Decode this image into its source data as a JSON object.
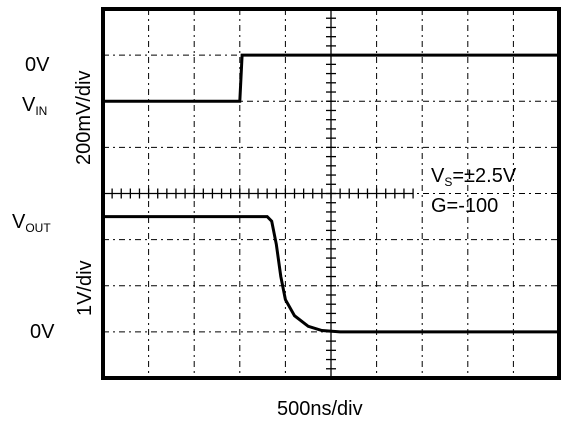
{
  "chart_data": {
    "type": "line",
    "x_axis_label": "500ns/div",
    "upper_trace": {
      "name_main": "V",
      "name_sub": "IN",
      "scale_label": "200mV/div",
      "zero_label": "0V",
      "zero_division": 1,
      "points": [
        [
          0,
          -1
        ],
        [
          3,
          -1
        ],
        [
          3.05,
          0
        ],
        [
          10,
          0
        ]
      ]
    },
    "lower_trace": {
      "name_main": "V",
      "name_sub": "OUT",
      "scale_label": "1V/div",
      "zero_label": "0V",
      "zero_division": 7,
      "points": [
        [
          0,
          2.5
        ],
        [
          3.6,
          2.5
        ],
        [
          3.7,
          2.4
        ],
        [
          3.8,
          1.9
        ],
        [
          3.9,
          1.2
        ],
        [
          4.0,
          0.7
        ],
        [
          4.2,
          0.35
        ],
        [
          4.5,
          0.12
        ],
        [
          4.8,
          0.03
        ],
        [
          5.2,
          0
        ],
        [
          10,
          0
        ]
      ]
    },
    "annotations": {
      "supply_main": "V",
      "supply_sub": "S",
      "supply_value": "=±2.5V",
      "gain": "G=-100"
    },
    "grid": {
      "x_divisions": 10,
      "y_divisions": 8,
      "dashed": true
    }
  }
}
